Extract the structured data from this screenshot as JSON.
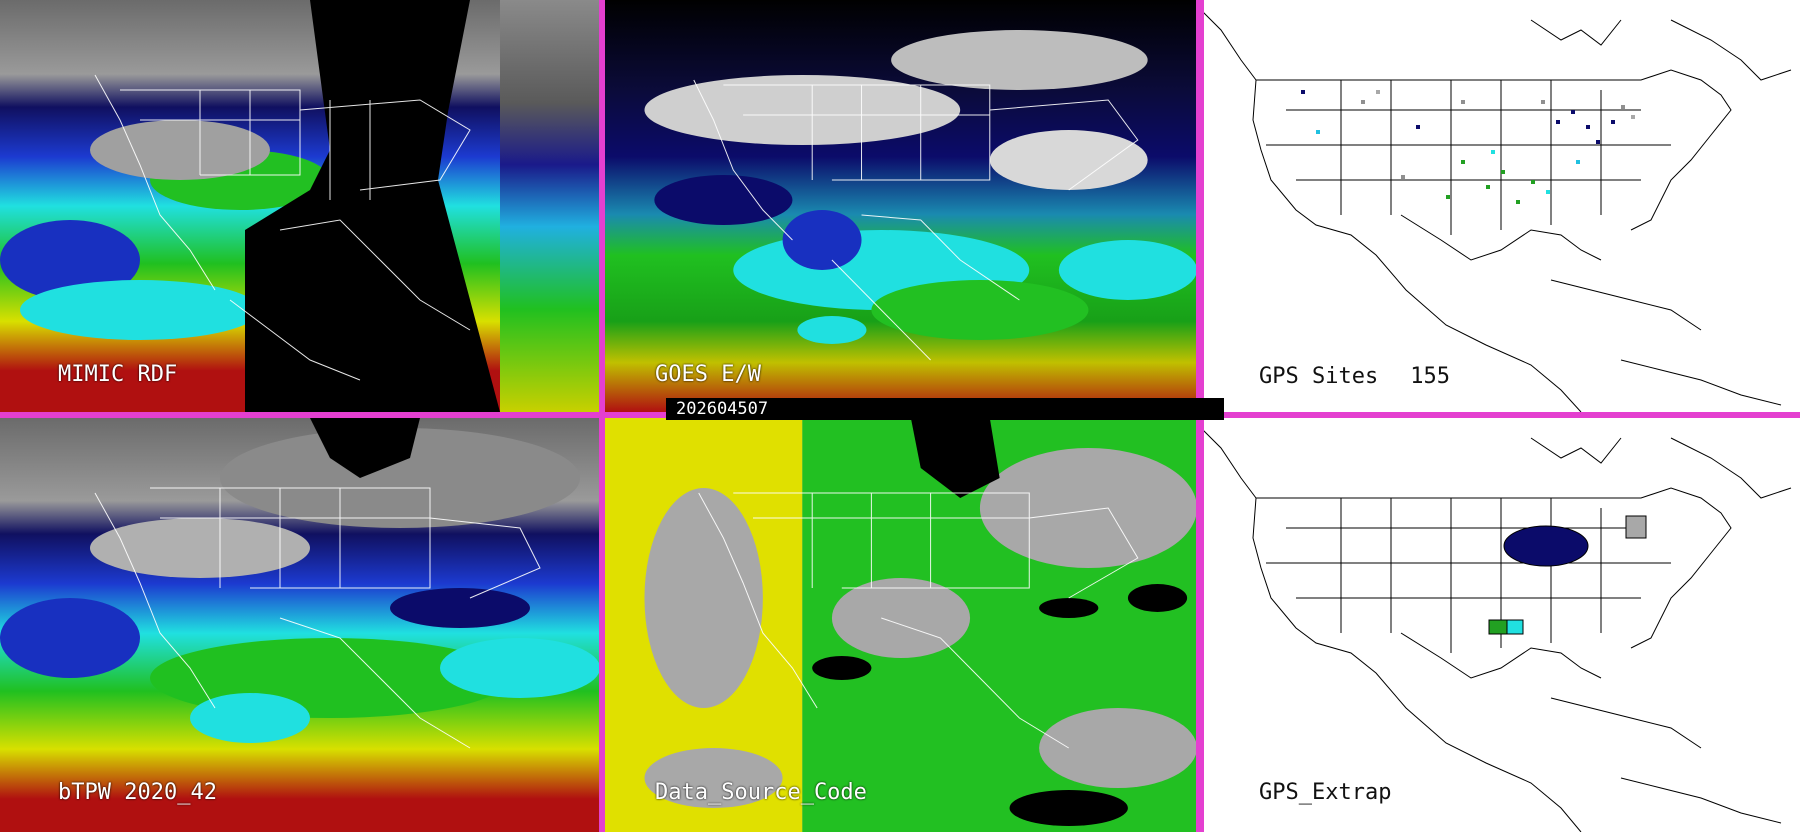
{
  "panels": {
    "mimic": {
      "label": "MIMIC RDF"
    },
    "goes": {
      "label": "GOES E/W"
    },
    "gps_sites": {
      "label": "GPS Sites",
      "count": "155"
    },
    "btpw": {
      "label": "bTPW 2020_42"
    },
    "data_source": {
      "label": "Data_Source_Code"
    },
    "gps_extrap": {
      "label": "GPS_Extrap"
    }
  },
  "timestamp": "202604507",
  "colors": {
    "separator": "#e43fd0",
    "moist_red": "#b01010",
    "yellow": "#e0e000",
    "green": "#22c022",
    "cyan": "#20e0e0",
    "blue": "#1830c0",
    "navy": "#0b0b6a",
    "gray": "#a8a8a8"
  }
}
